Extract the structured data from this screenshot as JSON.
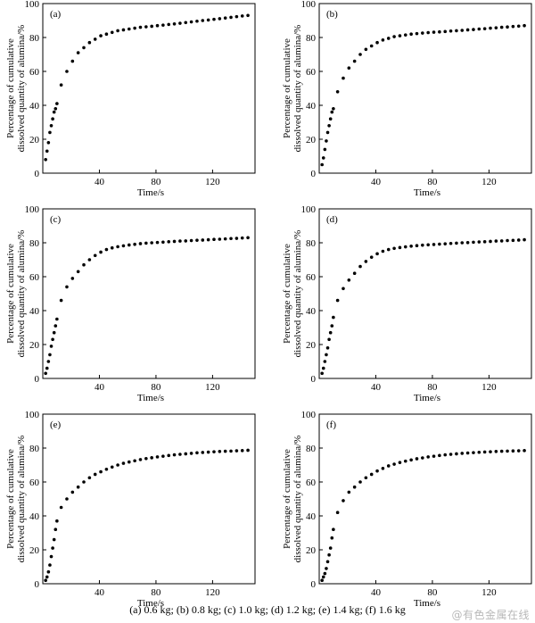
{
  "caption": "(a) 0.6 kg; (b) 0.8 kg; (c) 1.0 kg; (d) 1.2 kg; (e) 1.4 kg; (f) 1.6 kg",
  "watermark": "@有色金属在线",
  "chart_data": [
    {
      "type": "scatter",
      "panel_label": "(a)",
      "xlabel": "Time/s",
      "ylabel": [
        "Percentage of cumulative",
        "dissolved quantity of alumina/%"
      ],
      "xlim": [
        0,
        150
      ],
      "ylim": [
        0,
        100
      ],
      "xticks": [
        40,
        80,
        120
      ],
      "yticks": [
        0,
        20,
        40,
        60,
        80,
        100
      ],
      "grid": false,
      "x": [
        2,
        3,
        4,
        5,
        6,
        7,
        8,
        9,
        10,
        13,
        17,
        21,
        25,
        29,
        33,
        37,
        41,
        45,
        49,
        53,
        57,
        61,
        65,
        69,
        73,
        77,
        81,
        85,
        89,
        93,
        97,
        101,
        105,
        109,
        113,
        117,
        121,
        125,
        129,
        133,
        137,
        141,
        145
      ],
      "y": [
        8,
        13,
        18,
        24,
        28,
        32,
        36,
        38,
        41,
        52,
        60,
        66,
        71,
        74,
        77,
        79,
        81,
        82,
        83,
        84,
        84.5,
        85,
        85.5,
        86,
        86.3,
        86.6,
        87,
        87.3,
        87.7,
        88,
        88.4,
        88.8,
        89.2,
        89.6,
        90,
        90.3,
        90.7,
        91.1,
        91.5,
        91.9,
        92.3,
        92.7,
        93
      ]
    },
    {
      "type": "scatter",
      "panel_label": "(b)",
      "xlabel": "Time/s",
      "ylabel": [
        "Percentage of cumulative",
        "dissolved quantity of alumina/%"
      ],
      "xlim": [
        0,
        150
      ],
      "ylim": [
        0,
        100
      ],
      "xticks": [
        40,
        80,
        120
      ],
      "yticks": [
        0,
        20,
        40,
        60,
        80,
        100
      ],
      "grid": false,
      "x": [
        2,
        3,
        4,
        5,
        6,
        7,
        8,
        9,
        10,
        13,
        17,
        21,
        25,
        29,
        33,
        37,
        41,
        45,
        49,
        53,
        57,
        61,
        65,
        69,
        73,
        77,
        81,
        85,
        89,
        93,
        97,
        101,
        105,
        109,
        113,
        117,
        121,
        125,
        129,
        133,
        137,
        141,
        145
      ],
      "y": [
        5,
        9,
        14,
        19,
        24,
        28,
        32,
        36,
        38,
        48,
        56,
        62,
        66,
        70,
        73,
        75,
        77,
        78.5,
        79.5,
        80.5,
        81,
        81.5,
        82,
        82.3,
        82.6,
        82.9,
        83.1,
        83.3,
        83.5,
        83.8,
        84,
        84.2,
        84.5,
        84.7,
        85,
        85.2,
        85.5,
        85.7,
        86,
        86.2,
        86.5,
        86.7,
        87
      ]
    },
    {
      "type": "scatter",
      "panel_label": "(c)",
      "xlabel": "Time/s",
      "ylabel": [
        "Percentage of cumulative",
        "dissolved quantity of alumina/%"
      ],
      "xlim": [
        0,
        150
      ],
      "ylim": [
        0,
        100
      ],
      "xticks": [
        40,
        80,
        120
      ],
      "yticks": [
        0,
        20,
        40,
        60,
        80,
        100
      ],
      "grid": false,
      "x": [
        2,
        3,
        4,
        5,
        6,
        7,
        8,
        9,
        10,
        13,
        17,
        21,
        25,
        29,
        33,
        37,
        41,
        45,
        49,
        53,
        57,
        61,
        65,
        69,
        73,
        77,
        81,
        85,
        89,
        93,
        97,
        101,
        105,
        109,
        113,
        117,
        121,
        125,
        129,
        133,
        137,
        141,
        145
      ],
      "y": [
        3,
        6,
        10,
        14,
        19,
        23,
        27,
        31,
        35,
        46,
        54,
        59,
        63,
        67,
        70,
        72.5,
        74.5,
        76,
        77,
        77.7,
        78.2,
        78.7,
        79.1,
        79.5,
        79.8,
        80,
        80.2,
        80.4,
        80.6,
        80.8,
        81,
        81.1,
        81.3,
        81.5,
        81.6,
        81.8,
        82,
        82.1,
        82.3,
        82.5,
        82.6,
        82.8,
        83
      ]
    },
    {
      "type": "scatter",
      "panel_label": "(d)",
      "xlabel": "Time/s",
      "ylabel": [
        "Percentage of cumulative",
        "dissolved quantity of alumina/%"
      ],
      "xlim": [
        0,
        150
      ],
      "ylim": [
        0,
        100
      ],
      "xticks": [
        40,
        80,
        120
      ],
      "yticks": [
        0,
        20,
        40,
        60,
        80,
        100
      ],
      "grid": false,
      "x": [
        2,
        3,
        4,
        5,
        6,
        7,
        8,
        9,
        10,
        13,
        17,
        21,
        25,
        29,
        33,
        37,
        41,
        45,
        49,
        53,
        57,
        61,
        65,
        69,
        73,
        77,
        81,
        85,
        89,
        93,
        97,
        101,
        105,
        109,
        113,
        117,
        121,
        125,
        129,
        133,
        137,
        141,
        145
      ],
      "y": [
        3,
        6,
        10,
        14,
        18,
        23,
        27,
        31,
        36,
        46,
        53,
        58,
        62,
        66,
        69,
        71.5,
        73.5,
        75,
        76,
        76.7,
        77.2,
        77.6,
        78,
        78.3,
        78.6,
        78.8,
        79,
        79.2,
        79.4,
        79.6,
        79.8,
        80,
        80.1,
        80.3,
        80.5,
        80.6,
        80.8,
        81,
        81.1,
        81.3,
        81.4,
        81.6,
        81.8
      ]
    },
    {
      "type": "scatter",
      "panel_label": "(e)",
      "xlabel": "Time/s",
      "ylabel": [
        "Percentage of cumulative",
        "dissolved quantity of alumina/%"
      ],
      "xlim": [
        0,
        150
      ],
      "ylim": [
        0,
        100
      ],
      "xticks": [
        40,
        80,
        120
      ],
      "yticks": [
        0,
        20,
        40,
        60,
        80,
        100
      ],
      "grid": false,
      "x": [
        2,
        3,
        4,
        5,
        6,
        7,
        8,
        9,
        10,
        13,
        17,
        21,
        25,
        29,
        33,
        37,
        41,
        45,
        49,
        53,
        57,
        61,
        65,
        69,
        73,
        77,
        81,
        85,
        89,
        93,
        97,
        101,
        105,
        109,
        113,
        117,
        121,
        125,
        129,
        133,
        137,
        141,
        145
      ],
      "y": [
        2,
        4,
        7,
        11,
        16,
        21,
        26,
        32,
        37,
        45,
        50,
        54,
        57,
        60,
        62.5,
        64.5,
        66,
        67.5,
        68.8,
        70,
        71,
        71.8,
        72.5,
        73.2,
        73.8,
        74.3,
        74.8,
        75.2,
        75.6,
        76,
        76.3,
        76.6,
        76.9,
        77.2,
        77.4,
        77.6,
        77.8,
        78,
        78.1,
        78.2,
        78.4,
        78.5,
        78.7
      ]
    },
    {
      "type": "scatter",
      "panel_label": "(f)",
      "xlabel": "Time/s",
      "ylabel": [
        "Percentage of cumulative",
        "dissolved quantity of alumina/%"
      ],
      "xlim": [
        0,
        150
      ],
      "ylim": [
        0,
        100
      ],
      "xticks": [
        40,
        80,
        120
      ],
      "yticks": [
        0,
        20,
        40,
        60,
        80,
        100
      ],
      "grid": false,
      "x": [
        2,
        3,
        4,
        5,
        6,
        7,
        8,
        9,
        10,
        13,
        17,
        21,
        25,
        29,
        33,
        37,
        41,
        45,
        49,
        53,
        57,
        61,
        65,
        69,
        73,
        77,
        81,
        85,
        89,
        93,
        97,
        101,
        105,
        109,
        113,
        117,
        121,
        125,
        129,
        133,
        137,
        141,
        145
      ],
      "y": [
        2,
        4,
        6,
        9,
        13,
        17,
        21,
        27,
        32,
        42,
        49,
        54,
        57,
        60,
        62.5,
        64.5,
        66.5,
        68,
        69.5,
        70.5,
        71.5,
        72.3,
        73,
        73.7,
        74.2,
        74.8,
        75.2,
        75.6,
        76,
        76.3,
        76.6,
        76.9,
        77.1,
        77.3,
        77.5,
        77.7,
        77.8,
        78,
        78.1,
        78.2,
        78.3,
        78.4,
        78.5
      ]
    }
  ]
}
